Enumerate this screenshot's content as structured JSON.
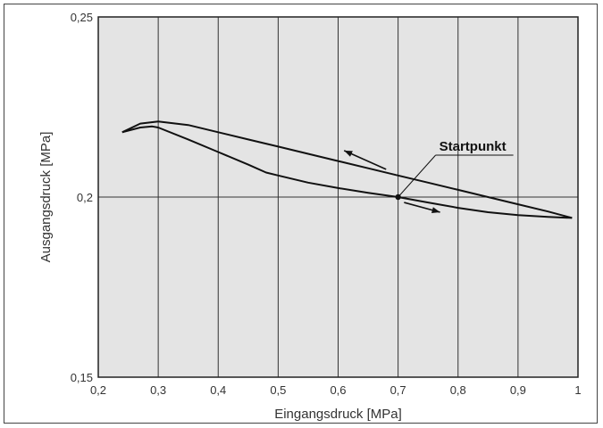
{
  "chart_data": {
    "type": "line",
    "xlabel": "Eingangsdruck [MPa]",
    "ylabel": "Ausgangsdruck [MPa]",
    "xlim": [
      0.2,
      1.0
    ],
    "ylim": [
      0.15,
      0.25
    ],
    "x_ticks": [
      "0,2",
      "0,3",
      "0,4",
      "0,5",
      "0,6",
      "0,7",
      "0,8",
      "0,9",
      "1"
    ],
    "y_ticks": [
      "0,15",
      "0,2",
      "0,25"
    ],
    "grid": {
      "vertical": true,
      "horizontal": "0,2 only"
    },
    "series": [
      {
        "x": [
          0.24,
          0.27,
          0.3,
          0.35,
          0.4,
          0.45,
          0.5,
          0.55,
          0.6,
          0.65,
          0.7,
          0.75,
          0.8,
          0.85,
          0.9,
          0.95,
          0.99
        ],
        "y": [
          0.218,
          0.2204,
          0.221,
          0.22,
          0.218,
          0.216,
          0.214,
          0.212,
          0.21,
          0.208,
          0.206,
          0.204,
          0.202,
          0.2,
          0.198,
          0.196,
          0.1942
        ]
      },
      {
        "x": [
          0.24,
          0.27,
          0.29,
          0.3,
          0.35,
          0.4,
          0.45,
          0.48,
          0.5,
          0.55,
          0.6,
          0.65,
          0.7,
          0.75,
          0.8,
          0.85,
          0.9,
          0.95,
          0.99
        ],
        "y": [
          0.218,
          0.2193,
          0.2196,
          0.2193,
          0.216,
          0.2125,
          0.209,
          0.2068,
          0.206,
          0.204,
          0.2025,
          0.2012,
          0.2,
          0.1985,
          0.197,
          0.1958,
          0.195,
          0.1945,
          0.1942
        ]
      }
    ],
    "annotations": [
      {
        "text": "Startpunkt",
        "x": 0.7,
        "y": 0.2
      }
    ],
    "arrows": [
      {
        "from": [
          0.68,
          0.2077
        ],
        "to": [
          0.61,
          0.2129
        ]
      },
      {
        "from": [
          0.71,
          0.1985
        ],
        "to": [
          0.77,
          0.1958
        ]
      }
    ]
  }
}
